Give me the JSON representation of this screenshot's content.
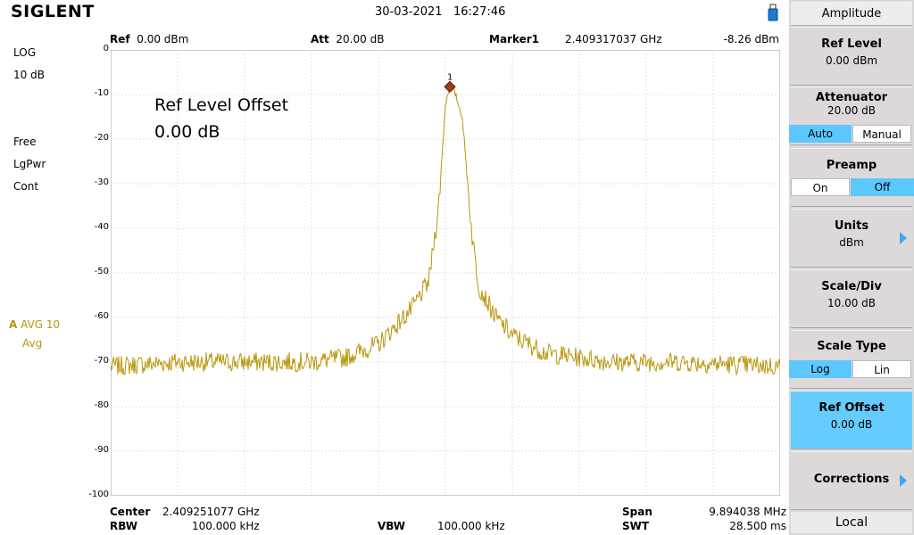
{
  "brand": "SIGLENT",
  "date": "30-03-2021",
  "time": "16:27:46",
  "header": {
    "ref_label": "Ref",
    "ref_value": "0.00 dBm",
    "att_label": "Att",
    "att_value": "20.00 dB",
    "marker_label": "Marker1",
    "marker_freq": "2.409317037 GHz",
    "marker_level": "-8.26 dBm"
  },
  "left": {
    "scale_mode": "LOG",
    "scale_div": "10 dB",
    "trig": "Free",
    "det": "LgPwr",
    "sweep": "Cont",
    "trace_letter": "A",
    "trace_avg": "AVG 10",
    "trace_mode": "Avg"
  },
  "plot": {
    "annotation_title": "Ref Level Offset",
    "annotation_value": "0.00 dB",
    "marker_num": "1",
    "y_ticks": [
      "0",
      "-10",
      "-20",
      "-30",
      "-40",
      "-50",
      "-60",
      "-70",
      "-80",
      "-90",
      "-100"
    ]
  },
  "footer": {
    "center_label": "Center",
    "center_value": "2.409251077 GHz",
    "rbw_label": "RBW",
    "rbw_value": "100.000 kHz",
    "vbw_label": "VBW",
    "vbw_value": "100.000 kHz",
    "span_label": "Span",
    "span_value": "9.894038 MHz",
    "swt_label": "SWT",
    "swt_value": "28.500 ms"
  },
  "menu": {
    "title": "Amplitude",
    "ref_level": {
      "label": "Ref Level",
      "value": "0.00 dBm"
    },
    "attenuator": {
      "label": "Attenuator",
      "value": "20.00 dB",
      "opt_a": "Auto",
      "opt_b": "Manual"
    },
    "preamp": {
      "label": "Preamp",
      "opt_a": "On",
      "opt_b": "Off"
    },
    "units": {
      "label": "Units",
      "value": "dBm"
    },
    "scale_div": {
      "label": "Scale/Div",
      "value": "10.00 dB"
    },
    "scale_type": {
      "label": "Scale Type",
      "opt_a": "Log",
      "opt_b": "Lin"
    },
    "ref_offset": {
      "label": "Ref Offset",
      "value": "0.00 dB"
    },
    "corrections": {
      "label": "Corrections"
    },
    "local": "Local"
  },
  "colors": {
    "trace": "#b8960c",
    "accent": "#5cc8ff",
    "marker": "#a03a10"
  },
  "chart_data": {
    "type": "line",
    "x_unit": "GHz",
    "xlim": [
      2.404304058,
      2.414198096
    ],
    "ylim": [
      -100,
      0
    ],
    "ylabel": "dBm",
    "grid": true,
    "series": [
      {
        "name": "A",
        "x": [
          2.404304,
          2.405294,
          2.406283,
          2.407273,
          2.407767,
          2.408262,
          2.408757,
          2.409005,
          2.409153,
          2.409252,
          2.409317,
          2.4094,
          2.4095,
          2.409647,
          2.409746,
          2.409993,
          2.410241,
          2.410736,
          2.411725,
          2.412714,
          2.414198
        ],
        "y": [
          -71,
          -70,
          -70,
          -70,
          -69,
          -66,
          -58,
          -52,
          -35,
          -12,
          -8,
          -10,
          -15,
          -42,
          -53,
          -60,
          -64,
          -68,
          -70,
          -70,
          -71
        ]
      }
    ],
    "marker": {
      "x": 2.409317037,
      "y": -8.26
    }
  }
}
